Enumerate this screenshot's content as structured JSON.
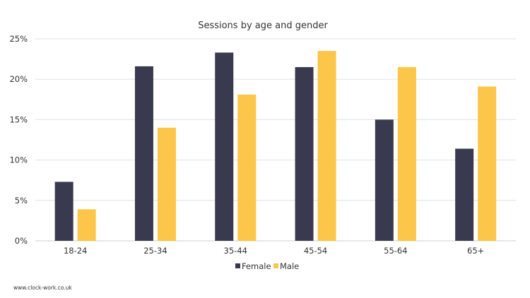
{
  "chart_data": {
    "type": "bar",
    "title": "Sessions by age and gender",
    "categories": [
      "18-24",
      "25-34",
      "35-44",
      "45-54",
      "55-64",
      "65+"
    ],
    "series": [
      {
        "name": "Female",
        "color": "#393a4f",
        "values": [
          7.3,
          21.6,
          23.3,
          21.5,
          15.0,
          11.4
        ]
      },
      {
        "name": "Male",
        "color": "#fbc649",
        "values": [
          3.9,
          14.0,
          18.1,
          23.5,
          21.5,
          19.1
        ]
      }
    ],
    "y_unit": "%",
    "ylim": [
      0,
      25
    ],
    "y_ticks": [
      "0%",
      "5%",
      "10%",
      "15%",
      "20%",
      "25%"
    ],
    "y_tick_values": [
      0,
      5,
      10,
      15,
      20,
      25
    ],
    "grid": true,
    "legend_position": "bottom"
  },
  "footer": {
    "source": "www.clock-work.co.uk"
  }
}
